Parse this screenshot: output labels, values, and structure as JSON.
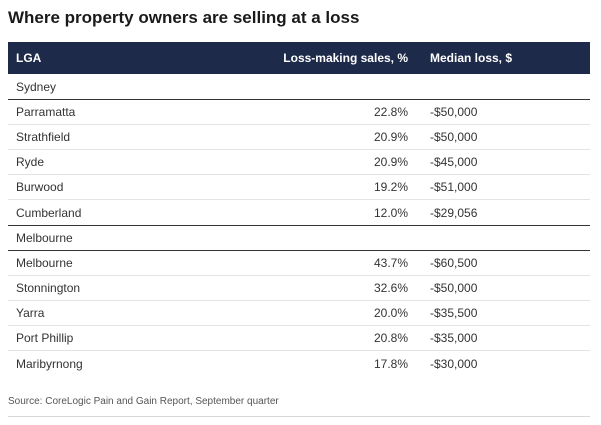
{
  "title": "Where property owners are selling at a loss",
  "columns": {
    "lga": "LGA",
    "loss_making_sales": "Loss-making sales, %",
    "median_loss": "Median loss, $"
  },
  "chart_data": {
    "type": "table",
    "title": "Where property owners are selling at a loss",
    "columns": [
      "LGA",
      "Loss-making sales, %",
      "Median loss, $"
    ],
    "groups": [
      {
        "name": "Sydney",
        "rows": [
          {
            "lga": "Parramatta",
            "pct": "22.8%",
            "loss": "-$50,000"
          },
          {
            "lga": "Strathfield",
            "pct": "20.9%",
            "loss": "-$50,000"
          },
          {
            "lga": "Ryde",
            "pct": "20.9%",
            "loss": "-$45,000"
          },
          {
            "lga": "Burwood",
            "pct": "19.2%",
            "loss": "-$51,000"
          },
          {
            "lga": "Cumberland",
            "pct": "12.0%",
            "loss": "-$29,056"
          }
        ]
      },
      {
        "name": "Melbourne",
        "rows": [
          {
            "lga": "Melbourne",
            "pct": "43.7%",
            "loss": "-$60,500"
          },
          {
            "lga": "Stonnington",
            "pct": "32.6%",
            "loss": "-$50,000"
          },
          {
            "lga": "Yarra",
            "pct": "20.0%",
            "loss": "-$35,500"
          },
          {
            "lga": "Port Phillip",
            "pct": "20.8%",
            "loss": "-$35,000"
          },
          {
            "lga": "Maribyrnong",
            "pct": "17.8%",
            "loss": "-$30,000"
          }
        ]
      }
    ]
  },
  "source": "Source: CoreLogic Pain and Gain Report, September quarter",
  "colors": {
    "header_bg": "#1e2a4a",
    "header_text": "#ffffff"
  }
}
